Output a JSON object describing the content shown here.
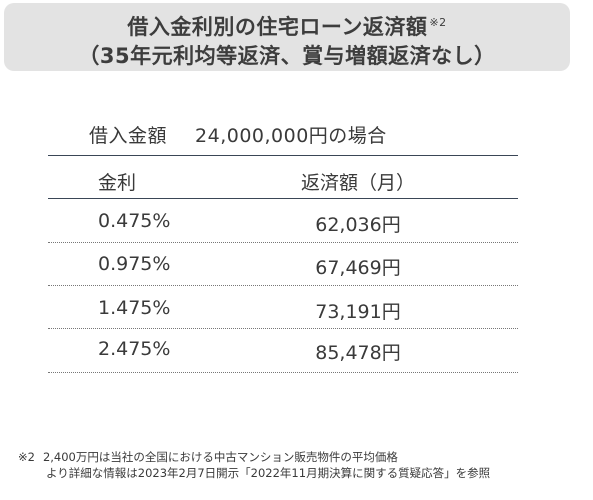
{
  "title": {
    "line1": "借入金利別の住宅ローン返済額",
    "line1_note": "※2",
    "line2": "（35年元利均等返済、賞与増額返済なし）"
  },
  "loan": {
    "label": "借入金額",
    "amount": "24,000,000円の場合"
  },
  "table": {
    "headers": [
      "金利",
      "返済額（月）"
    ],
    "rows": [
      {
        "rate": "0.475%",
        "payment": "62,036円"
      },
      {
        "rate": "0.975%",
        "payment": "67,469円"
      },
      {
        "rate": "1.475%",
        "payment": "73,191円"
      },
      {
        "rate": "2.475%",
        "payment": "85,478円"
      }
    ]
  },
  "footnotes": {
    "mark": "※2",
    "line1": "2,400万円は当社の全国における中古マンション販売物件の平均価格",
    "line2": "より詳細な情報は2023年2月7日開示「2022年11月期決算に関する質疑応答」を参照"
  }
}
